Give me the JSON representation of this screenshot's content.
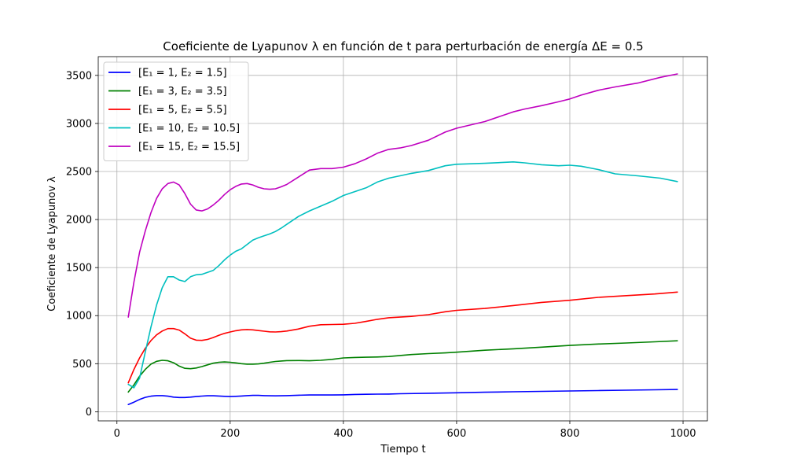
{
  "chart_data": {
    "type": "line",
    "title": "Coeficiente de Lyapunov λ en función de t para perturbación de energía ΔE = 0.5",
    "xlabel": "Tiempo t",
    "ylabel": "Coeficiente de Lyapunov λ",
    "xlim": [
      -33,
      1043
    ],
    "ylim": [
      -95,
      3695
    ],
    "xticks": [
      0,
      200,
      400,
      600,
      800,
      1000
    ],
    "xtick_labels": [
      "0",
      "200",
      "400",
      "600",
      "800",
      "1000"
    ],
    "yticks": [
      0,
      500,
      1000,
      1500,
      2000,
      2500,
      3000,
      3500
    ],
    "ytick_labels": [
      "0",
      "500",
      "1000",
      "1500",
      "2000",
      "2500",
      "3000",
      "3500"
    ],
    "grid": true,
    "legend_position": "top-left",
    "series": [
      {
        "name": "[E₁ = 1, E₂ = 1.5]",
        "color": "#0000ff",
        "x": [
          20,
          30,
          40,
          50,
          60,
          70,
          80,
          90,
          100,
          110,
          120,
          130,
          140,
          150,
          160,
          170,
          180,
          190,
          200,
          210,
          220,
          230,
          240,
          250,
          260,
          270,
          280,
          290,
          300,
          320,
          340,
          360,
          380,
          400,
          420,
          440,
          460,
          480,
          500,
          550,
          600,
          650,
          700,
          750,
          800,
          850,
          900,
          950,
          990
        ],
        "y": [
          75,
          100,
          128,
          150,
          162,
          168,
          168,
          162,
          152,
          148,
          148,
          152,
          158,
          163,
          166,
          166,
          164,
          160,
          158,
          160,
          164,
          168,
          170,
          170,
          168,
          166,
          165,
          166,
          168,
          172,
          174,
          174,
          174,
          176,
          180,
          182,
          183,
          184,
          187,
          192,
          197,
          203,
          208,
          212,
          216,
          220,
          224,
          228,
          232
        ]
      },
      {
        "name": "[E₁ = 3, E₂ = 3.5]",
        "color": "#008000",
        "x": [
          20,
          30,
          40,
          50,
          60,
          70,
          80,
          90,
          100,
          110,
          120,
          130,
          140,
          150,
          160,
          170,
          180,
          190,
          200,
          210,
          220,
          230,
          240,
          250,
          260,
          270,
          280,
          290,
          300,
          320,
          340,
          360,
          380,
          400,
          420,
          440,
          460,
          480,
          500,
          520,
          550,
          580,
          600,
          650,
          700,
          750,
          800,
          850,
          900,
          950,
          990
        ],
        "y": [
          205,
          280,
          370,
          440,
          495,
          525,
          535,
          530,
          510,
          475,
          452,
          448,
          455,
          470,
          488,
          505,
          515,
          518,
          515,
          508,
          500,
          495,
          495,
          498,
          505,
          515,
          523,
          528,
          532,
          533,
          530,
          535,
          545,
          560,
          565,
          567,
          570,
          575,
          585,
          595,
          605,
          612,
          620,
          640,
          655,
          672,
          690,
          705,
          715,
          728,
          738
        ]
      },
      {
        "name": "[E₁ = 5, E₂ = 5.5]",
        "color": "#ff0000",
        "x": [
          20,
          30,
          40,
          50,
          60,
          70,
          80,
          90,
          100,
          110,
          120,
          130,
          140,
          150,
          160,
          170,
          180,
          190,
          200,
          210,
          220,
          230,
          240,
          250,
          260,
          270,
          280,
          290,
          300,
          320,
          340,
          360,
          380,
          400,
          420,
          440,
          460,
          480,
          500,
          520,
          550,
          580,
          600,
          650,
          700,
          750,
          800,
          850,
          900,
          950,
          990
        ],
        "y": [
          300,
          440,
          560,
          660,
          740,
          800,
          840,
          865,
          865,
          850,
          810,
          765,
          745,
          742,
          752,
          772,
          795,
          815,
          830,
          843,
          852,
          855,
          852,
          845,
          838,
          832,
          830,
          833,
          840,
          860,
          890,
          905,
          908,
          910,
          920,
          940,
          962,
          978,
          985,
          992,
          1010,
          1040,
          1055,
          1075,
          1105,
          1138,
          1160,
          1190,
          1208,
          1225,
          1245
        ]
      },
      {
        "name": "[E₁ = 10, E₂ = 10.5]",
        "color": "#00bfbf",
        "x": [
          20,
          30,
          40,
          50,
          60,
          70,
          80,
          90,
          100,
          110,
          120,
          130,
          140,
          150,
          160,
          170,
          180,
          190,
          200,
          210,
          220,
          230,
          240,
          250,
          260,
          270,
          280,
          290,
          300,
          320,
          340,
          360,
          380,
          400,
          420,
          440,
          460,
          480,
          500,
          520,
          550,
          580,
          600,
          650,
          700,
          720,
          750,
          780,
          800,
          820,
          850,
          880,
          920,
          960,
          990
        ],
        "y": [
          285,
          250,
          350,
          620,
          880,
          1110,
          1290,
          1405,
          1405,
          1370,
          1355,
          1405,
          1425,
          1430,
          1450,
          1470,
          1520,
          1580,
          1630,
          1670,
          1695,
          1740,
          1785,
          1810,
          1830,
          1850,
          1875,
          1910,
          1950,
          2030,
          2090,
          2140,
          2190,
          2250,
          2290,
          2330,
          2390,
          2430,
          2455,
          2480,
          2510,
          2560,
          2575,
          2585,
          2600,
          2590,
          2570,
          2560,
          2565,
          2555,
          2520,
          2475,
          2455,
          2430,
          2395
        ]
      },
      {
        "name": "[E₁ = 15, E₂ = 15.5]",
        "color": "#bf00bf",
        "x": [
          20,
          30,
          40,
          50,
          60,
          70,
          80,
          90,
          100,
          110,
          120,
          130,
          140,
          150,
          160,
          170,
          180,
          190,
          200,
          210,
          220,
          230,
          240,
          250,
          260,
          270,
          280,
          290,
          300,
          320,
          340,
          360,
          380,
          400,
          420,
          440,
          460,
          480,
          500,
          520,
          550,
          580,
          600,
          650,
          700,
          720,
          750,
          780,
          800,
          820,
          850,
          880,
          920,
          960,
          990
        ],
        "y": [
          985,
          1350,
          1660,
          1880,
          2070,
          2220,
          2320,
          2375,
          2390,
          2360,
          2270,
          2160,
          2100,
          2090,
          2110,
          2150,
          2200,
          2260,
          2310,
          2345,
          2370,
          2375,
          2360,
          2335,
          2320,
          2315,
          2320,
          2340,
          2365,
          2440,
          2515,
          2530,
          2530,
          2545,
          2580,
          2630,
          2690,
          2730,
          2745,
          2770,
          2825,
          2910,
          2950,
          3020,
          3120,
          3150,
          3185,
          3225,
          3255,
          3295,
          3345,
          3380,
          3420,
          3480,
          3515
        ]
      }
    ]
  }
}
